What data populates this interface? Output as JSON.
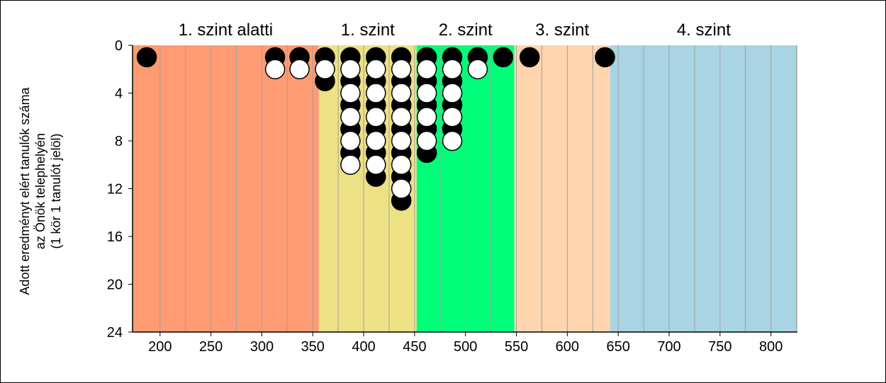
{
  "chart_data": {
    "type": "scatter",
    "ylabel": [
      "Adott eredményt elért tanulók száma",
      "az Önök telephelyén",
      "(1 kör 1 tanulót jelöl)"
    ],
    "xlim": [
      173,
      826
    ],
    "ylim": [
      0,
      24
    ],
    "y_inverted": true,
    "xticks": [
      200,
      250,
      300,
      350,
      400,
      450,
      500,
      550,
      600,
      650,
      700,
      750,
      800
    ],
    "yticks": [
      0,
      4,
      8,
      12,
      16,
      20,
      24
    ],
    "grid": "vertical",
    "bands": [
      {
        "label": "1. szint alatti",
        "from": 173,
        "to": 356,
        "color": "#FF9B73"
      },
      {
        "label": "1. szint",
        "from": 356,
        "to": 452,
        "color": "#EDE185"
      },
      {
        "label": "2. szint",
        "from": 452,
        "to": 548,
        "color": "#00FF79"
      },
      {
        "label": "3. szint",
        "from": 548,
        "to": 642,
        "color": "#FFD5AE"
      },
      {
        "label": "4. szint",
        "from": 642,
        "to": 826,
        "color": "#A8D4E3"
      }
    ],
    "series": [
      {
        "fill": "black",
        "points": [
          [
            187,
            1
          ],
          [
            313,
            1
          ],
          [
            337,
            1
          ],
          [
            362,
            1
          ],
          [
            362,
            3
          ],
          [
            387,
            1
          ],
          [
            387,
            3
          ],
          [
            387,
            5
          ],
          [
            387,
            7
          ],
          [
            387,
            9
          ],
          [
            412,
            1
          ],
          [
            412,
            3
          ],
          [
            412,
            5
          ],
          [
            412,
            7
          ],
          [
            412,
            9
          ],
          [
            412,
            11
          ],
          [
            437,
            1
          ],
          [
            437,
            3
          ],
          [
            437,
            5
          ],
          [
            437,
            7
          ],
          [
            437,
            9
          ],
          [
            437,
            11
          ],
          [
            437,
            13
          ],
          [
            462,
            1
          ],
          [
            462,
            3
          ],
          [
            462,
            5
          ],
          [
            462,
            7
          ],
          [
            462,
            9
          ],
          [
            487,
            1
          ],
          [
            487,
            3
          ],
          [
            487,
            5
          ],
          [
            487,
            7
          ],
          [
            512,
            1
          ],
          [
            537,
            1
          ],
          [
            563,
            1
          ],
          [
            637,
            1
          ]
        ]
      },
      {
        "fill": "white",
        "points": [
          [
            313,
            2
          ],
          [
            337,
            2
          ],
          [
            362,
            2
          ],
          [
            387,
            2
          ],
          [
            387,
            4
          ],
          [
            387,
            6
          ],
          [
            387,
            8
          ],
          [
            387,
            10
          ],
          [
            412,
            2
          ],
          [
            412,
            4
          ],
          [
            412,
            6
          ],
          [
            412,
            8
          ],
          [
            412,
            10
          ],
          [
            437,
            2
          ],
          [
            437,
            4
          ],
          [
            437,
            6
          ],
          [
            437,
            8
          ],
          [
            437,
            10
          ],
          [
            437,
            12
          ],
          [
            462,
            2
          ],
          [
            462,
            4
          ],
          [
            462,
            6
          ],
          [
            462,
            8
          ],
          [
            487,
            2
          ],
          [
            487,
            4
          ],
          [
            487,
            6
          ],
          [
            487,
            8
          ],
          [
            512,
            2
          ]
        ]
      }
    ]
  }
}
